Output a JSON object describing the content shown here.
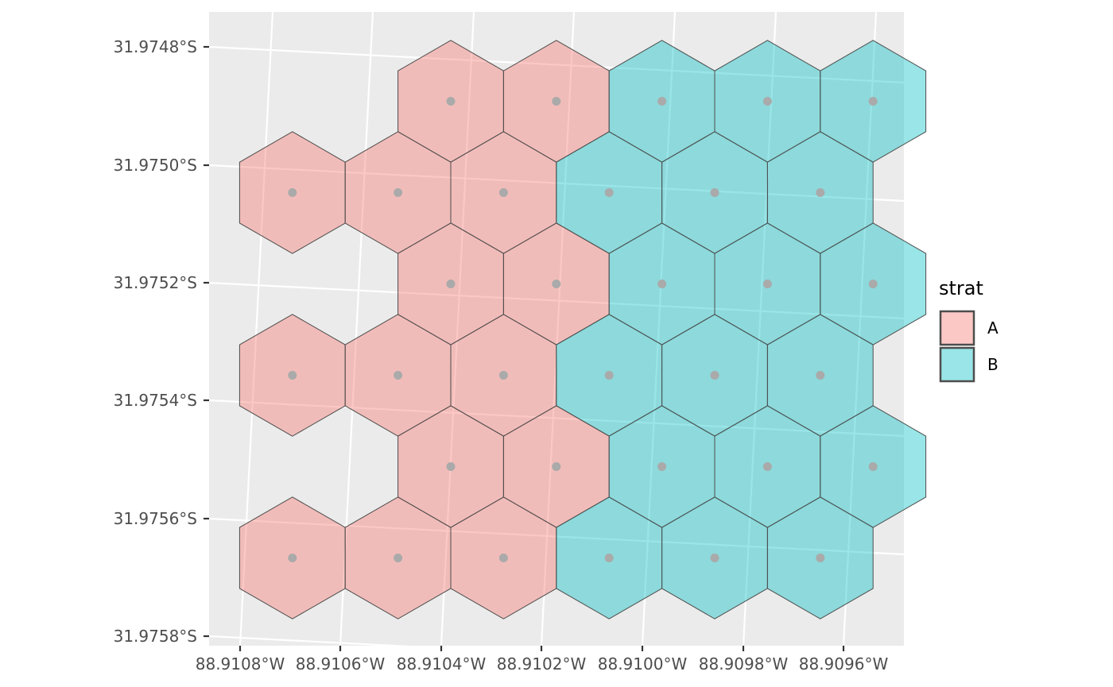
{
  "chart_data": {
    "type": "map",
    "title": "",
    "xlabel": "",
    "ylabel": "",
    "grid": true,
    "legend_position": "right",
    "legend": {
      "title": "strat",
      "entries": [
        {
          "label": "A",
          "color": "#F8766D"
        },
        {
          "label": "B",
          "color": "#00BFC4"
        }
      ]
    },
    "x_ticks": [
      "88.9108°W",
      "88.9106°W",
      "88.9104°W",
      "88.9102°W",
      "88.9100°W",
      "88.9098°W",
      "88.9096°W"
    ],
    "y_ticks": [
      "31.9748°S",
      "31.9750°S",
      "31.9752°S",
      "31.9754°S",
      "31.9756°S",
      "31.9758°S"
    ],
    "cells": [
      {
        "row": 0,
        "col": 1,
        "strat": "A"
      },
      {
        "row": 0,
        "col": 2,
        "strat": "A"
      },
      {
        "row": 0,
        "col": 3,
        "strat": "B"
      },
      {
        "row": 0,
        "col": 4,
        "strat": "B"
      },
      {
        "row": 0,
        "col": 5,
        "strat": "B"
      },
      {
        "row": 1,
        "col": 0,
        "strat": "A"
      },
      {
        "row": 1,
        "col": 1,
        "strat": "A"
      },
      {
        "row": 1,
        "col": 2,
        "strat": "A"
      },
      {
        "row": 1,
        "col": 3,
        "strat": "B"
      },
      {
        "row": 1,
        "col": 4,
        "strat": "B"
      },
      {
        "row": 1,
        "col": 5,
        "strat": "B"
      },
      {
        "row": 2,
        "col": 1,
        "strat": "A"
      },
      {
        "row": 2,
        "col": 2,
        "strat": "A"
      },
      {
        "row": 2,
        "col": 3,
        "strat": "B"
      },
      {
        "row": 2,
        "col": 4,
        "strat": "B"
      },
      {
        "row": 2,
        "col": 5,
        "strat": "B"
      },
      {
        "row": 3,
        "col": 0,
        "strat": "A"
      },
      {
        "row": 3,
        "col": 1,
        "strat": "A"
      },
      {
        "row": 3,
        "col": 2,
        "strat": "A"
      },
      {
        "row": 3,
        "col": 3,
        "strat": "B"
      },
      {
        "row": 3,
        "col": 4,
        "strat": "B"
      },
      {
        "row": 3,
        "col": 5,
        "strat": "B"
      },
      {
        "row": 4,
        "col": 1,
        "strat": "A"
      },
      {
        "row": 4,
        "col": 2,
        "strat": "A"
      },
      {
        "row": 4,
        "col": 3,
        "strat": "B"
      },
      {
        "row": 4,
        "col": 4,
        "strat": "B"
      },
      {
        "row": 4,
        "col": 5,
        "strat": "B"
      },
      {
        "row": 5,
        "col": 0,
        "strat": "A"
      },
      {
        "row": 5,
        "col": 1,
        "strat": "A"
      },
      {
        "row": 5,
        "col": 2,
        "strat": "A"
      },
      {
        "row": 5,
        "col": 3,
        "strat": "B"
      },
      {
        "row": 5,
        "col": 4,
        "strat": "B"
      },
      {
        "row": 5,
        "col": 5,
        "strat": "B"
      }
    ],
    "fill_opacity": 0.4,
    "centroid_color": "#AAAAAA",
    "panel_color": "#EBEBEB",
    "gridline_color": "#FFFFFF",
    "border_color": "#4D4D4D"
  }
}
